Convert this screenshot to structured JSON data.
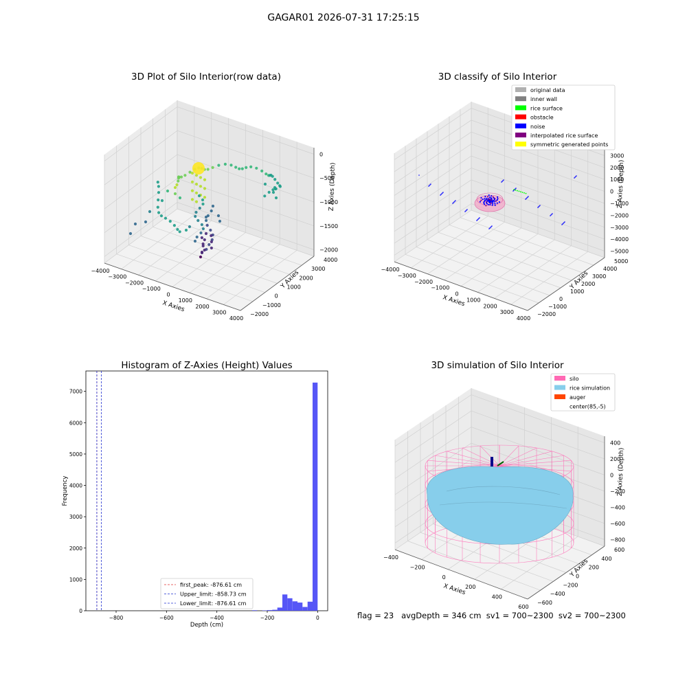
{
  "suptitle": "GAGAR01 2026-07-31 17:25:15",
  "footer": "flag = 23   avgDepth = 346 cm  sv1 = 700~2300  sv2 = 700~2300",
  "chart_data": [
    {
      "type": "scatter",
      "subtype": "3d",
      "title": "3D Plot of Silo Interior(row data)",
      "xlabel": "X Axies",
      "ylabel": "Y Axies",
      "zlabel": "Z Axies (Depth)",
      "xticks": [
        "−4000",
        "−3000",
        "−2000",
        "−1000",
        "0",
        "1000",
        "2000",
        "3000",
        "4000"
      ],
      "yticks": [
        "−2000",
        "−1000",
        "0",
        "1000",
        "2000",
        "3000",
        "4000"
      ],
      "zticks": [
        "0",
        "−500",
        "−1000",
        "−1500",
        "−2000"
      ],
      "colormap": "viridis",
      "grid": true
    },
    {
      "type": "scatter",
      "subtype": "3d",
      "title": "3D classify of Silo Interior",
      "xlabel": "X Axies",
      "ylabel": "Y Axies",
      "zlabel": "Z Axies (Depth)",
      "xticks": [
        "−4000",
        "−3000",
        "−2000",
        "−1000",
        "0",
        "1000",
        "2000",
        "3000",
        "4000"
      ],
      "yticks": [
        "−2000",
        "−1000",
        "0",
        "1000",
        "2000",
        "3000",
        "4000",
        "5000"
      ],
      "zticks": [
        "3000",
        "2000",
        "1000",
        "0",
        "−1000",
        "−2000",
        "−3000",
        "−4000",
        "−5000"
      ],
      "legend": [
        {
          "label": "original data",
          "color": "#b0b0b0"
        },
        {
          "label": "inner wall",
          "color": "#808080"
        },
        {
          "label": "rice surface",
          "color": "#00ff00"
        },
        {
          "label": "obstacle",
          "color": "#ff0000"
        },
        {
          "label": "noise",
          "color": "#0000ff"
        },
        {
          "label": "interpolated rice surface",
          "color": "#800080"
        },
        {
          "label": "symmetric generated points",
          "color": "#ffff00"
        }
      ],
      "legend_loc": "upper right",
      "grid": true
    },
    {
      "type": "histogram",
      "title": "Histogram of Z-Axies (Height) Values",
      "xlabel": "Depth (cm)",
      "ylabel": "Frequency",
      "xlim": [
        -920,
        40
      ],
      "ylim": [
        0,
        7650
      ],
      "xticks": [
        -800,
        -600,
        -400,
        -200,
        0
      ],
      "yticks": [
        0,
        1000,
        2000,
        3000,
        4000,
        5000,
        6000,
        7000
      ],
      "bar_color": "#4d4df5",
      "bins": [
        {
          "x0": -260,
          "x1": -240,
          "count": 15
        },
        {
          "x0": -220,
          "x1": -200,
          "count": 10
        },
        {
          "x0": -200,
          "x1": -180,
          "count": 20
        },
        {
          "x0": -180,
          "x1": -160,
          "count": 30
        },
        {
          "x0": -160,
          "x1": -140,
          "count": 100
        },
        {
          "x0": -140,
          "x1": -120,
          "count": 520
        },
        {
          "x0": -120,
          "x1": -100,
          "count": 400
        },
        {
          "x0": -100,
          "x1": -80,
          "count": 300
        },
        {
          "x0": -80,
          "x1": -60,
          "count": 260
        },
        {
          "x0": -60,
          "x1": -40,
          "count": 120
        },
        {
          "x0": -40,
          "x1": -20,
          "count": 290
        },
        {
          "x0": -20,
          "x1": 0,
          "count": 7280
        }
      ],
      "vlines": [
        {
          "label": "first_peak: -876.61 cm",
          "x": -876.61,
          "color": "#e03030"
        },
        {
          "label": "Upper_limit: -858.73 cm",
          "x": -858.73,
          "color": "#2030d0"
        },
        {
          "label": "Lower_limit: -876.61 cm",
          "x": -876.61,
          "color": "#2030d0"
        }
      ],
      "legend_loc": "lower center",
      "grid": false
    },
    {
      "type": "surface",
      "subtype": "3d",
      "title": "3D simulation of Silo Interior",
      "xlabel": "X Axies",
      "ylabel": "Y Axies",
      "zlabel": "Z Axies (Depth)",
      "xticks": [
        "−400",
        "−200",
        "0",
        "200",
        "400",
        "600"
      ],
      "yticks": [
        "−600",
        "−400",
        "−200",
        "0",
        "200",
        "400",
        "600"
      ],
      "zticks": [
        "400",
        "200",
        "0",
        "−200",
        "−400",
        "−600",
        "−800"
      ],
      "legend": [
        {
          "label": "silo",
          "color": "#ff69b4"
        },
        {
          "label": "rice simulation",
          "color": "#87ceeb"
        },
        {
          "label": "auger",
          "color": "#ff4500"
        },
        {
          "label": "center(85,-5)",
          "color": "#ffffff"
        }
      ],
      "legend_loc": "upper right",
      "grid": true
    }
  ]
}
